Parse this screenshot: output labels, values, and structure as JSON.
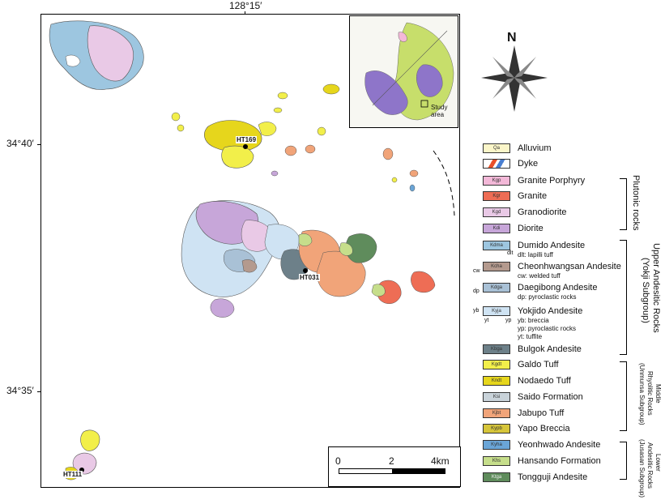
{
  "coordinates": {
    "top_longitude": "128°15′",
    "lat_upper": "34°40′",
    "lat_lower": "34°35′"
  },
  "stations": [
    "HT169",
    "HT031",
    "HT111"
  ],
  "inset": {
    "label": "Study area"
  },
  "north_arrow": {
    "label": "N"
  },
  "scale_bar": {
    "ticks": [
      "0",
      "2",
      "4km"
    ]
  },
  "legend": {
    "items": [
      {
        "code": "Qa",
        "label": "Alluvium",
        "color": "#fbf6c9"
      },
      {
        "code": "",
        "label": "Dyke",
        "color": "#e8502a"
      },
      {
        "code": "Kgp",
        "label": "Granite Porphyry",
        "color": "#f3b8d8"
      },
      {
        "code": "Kgr",
        "label": "Granite",
        "color": "#ee6d55"
      },
      {
        "code": "Kgd",
        "label": "Granodiorite",
        "color": "#e9c9e6"
      },
      {
        "code": "Kdi",
        "label": "Diorite",
        "color": "#c7a6d9"
      },
      {
        "code": "Kdma",
        "label": "Dumido Andesite",
        "color": "#9dc6e0"
      },
      {
        "code": "Kcha",
        "label": "Cheonhwangsan Andesite",
        "color": "#b49a8e"
      },
      {
        "code": "Kdga",
        "label": "Daegibong Andesite",
        "color": "#a9c1d6"
      },
      {
        "code": "Kyja",
        "label": "Yokjido Andesite",
        "color": "#cfe3f3"
      },
      {
        "code": "Kbga",
        "label": "Bulgok Andesite",
        "color": "#6d8089"
      },
      {
        "code": "Kgdt",
        "label": "Galdo Tuff",
        "color": "#f2ef4a"
      },
      {
        "code": "Kndt",
        "label": "Nodaedo Tuff",
        "color": "#e6d61c"
      },
      {
        "code": "Ksi",
        "label": "Saido Formation",
        "color": "#c9d3da"
      },
      {
        "code": "Kjbt",
        "label": "Jabupo Tuff",
        "color": "#f1a479"
      },
      {
        "code": "Kypb",
        "label": "Yapo Breccia",
        "color": "#d6c53a"
      },
      {
        "code": "Kyha",
        "label": "Yeonhwado Andesite",
        "color": "#6aa5d7"
      },
      {
        "code": "Khs",
        "label": "Hansando Formation",
        "color": "#c6de8b"
      },
      {
        "code": "Ktga",
        "label": "Tongguji Andesite",
        "color": "#5f8c5c"
      }
    ],
    "sub_notes": {
      "dumido": "dlt: lapilli tuff",
      "cheonhwangsan": "cw: welded tuff",
      "daegibong": "dp: pyroclastic rocks",
      "yokjido_1": "yb: breccia",
      "yokjido_2": "yp: pyroclastic rocks",
      "yokjido_3": "yt: tuffite"
    },
    "swatch_marks": {
      "dumido": "dlt",
      "cheonhwangsan": "cw",
      "daegibong": "dp",
      "yokjido_left": "yb",
      "yokjido_bottom_left": "yt",
      "yokjido_bottom_right": "yp"
    },
    "groups": {
      "plutonic": "Plutonic rocks",
      "upper_1": "Upper Andesitic Rocks",
      "upper_2": "(Yokji Subgroup)",
      "middle_1": "Middle",
      "middle_2": "Rhyolitic Rocks",
      "middle_3": "(Unmunsa Subgroup)",
      "lower_1": "Lower",
      "lower_2": "Andesitic Rocks",
      "lower_3": "(Jusasan Subgroup)"
    }
  },
  "colors": {
    "water": "#ffffff",
    "frame": "#000000"
  }
}
